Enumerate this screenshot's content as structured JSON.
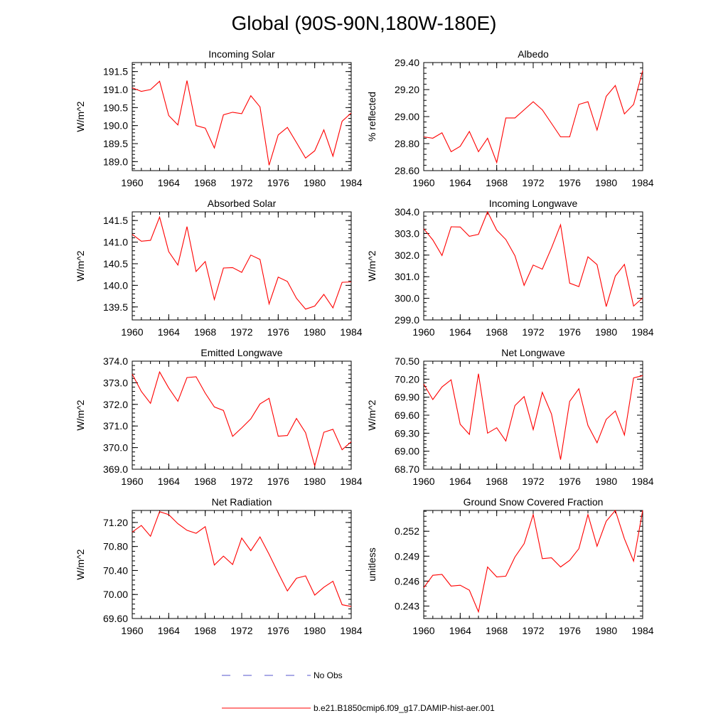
{
  "title": "Global (90S-90N,180W-180E)",
  "colors": {
    "model": "#ff0000",
    "obs": "#5555cc",
    "axis": "#000000"
  },
  "legend": {
    "entries": [
      {
        "label": "No Obs",
        "style": "dashed",
        "color": "#5555cc"
      },
      {
        "label": "b.e21.B1850cmip6.f09_g17.DAMIP-hist-aer.001",
        "style": "solid",
        "color": "#ff0000"
      }
    ]
  },
  "chart_data": [
    {
      "type": "line",
      "title": "Incoming Solar",
      "ylabel": "W/m^2",
      "xlim": [
        1960,
        1984
      ],
      "ylim": [
        188.75,
        191.75
      ],
      "yticks": [
        189.0,
        189.5,
        190.0,
        190.5,
        191.0,
        191.5
      ],
      "yticklabels": [
        "189.0",
        "189.5",
        "190.0",
        "190.5",
        "191.0",
        "191.5"
      ],
      "yminor": 0.1,
      "xticks": [
        1960,
        1964,
        1968,
        1972,
        1976,
        1980,
        1984
      ],
      "xticklabels": [
        "1960",
        "1964",
        "1968",
        "1972",
        "1976",
        "1980",
        "1984"
      ],
      "x": [
        1960,
        1961,
        1962,
        1963,
        1964,
        1965,
        1966,
        1967,
        1968,
        1969,
        1970,
        1971,
        1972,
        1973,
        1974,
        1975,
        1976,
        1977,
        1978,
        1979,
        1980,
        1981,
        1982,
        1983,
        1984
      ],
      "series": [
        {
          "values": [
            191.05,
            190.95,
            191.0,
            191.23,
            190.28,
            190.02,
            191.25,
            190.0,
            189.93,
            189.38,
            190.3,
            190.37,
            190.33,
            190.83,
            190.52,
            188.9,
            189.74,
            189.95,
            189.53,
            189.1,
            189.3,
            189.88,
            189.15,
            190.12,
            190.35
          ]
        }
      ]
    },
    {
      "type": "line",
      "title": "Albedo",
      "ylabel": "% reflected",
      "xlim": [
        1960,
        1984
      ],
      "ylim": [
        28.6,
        29.4
      ],
      "yticks": [
        28.6,
        28.8,
        29.0,
        29.2,
        29.4
      ],
      "yticklabels": [
        "28.60",
        "28.80",
        "29.00",
        "29.20",
        "29.40"
      ],
      "yminor": 0.04,
      "xticks": [
        1960,
        1964,
        1968,
        1972,
        1976,
        1980,
        1984
      ],
      "xticklabels": [
        "1960",
        "1964",
        "1968",
        "1972",
        "1976",
        "1980",
        "1984"
      ],
      "x": [
        1960,
        1961,
        1962,
        1963,
        1964,
        1965,
        1966,
        1967,
        1968,
        1969,
        1970,
        1971,
        1972,
        1973,
        1974,
        1975,
        1976,
        1977,
        1978,
        1979,
        1980,
        1981,
        1982,
        1983,
        1984
      ],
      "series": [
        {
          "values": [
            28.85,
            28.84,
            28.88,
            28.74,
            28.78,
            28.89,
            28.74,
            28.84,
            28.66,
            28.99,
            28.99,
            29.05,
            29.11,
            29.05,
            28.95,
            28.85,
            28.85,
            29.09,
            29.11,
            28.9,
            29.15,
            29.23,
            29.02,
            29.09,
            29.34
          ]
        }
      ]
    },
    {
      "type": "line",
      "title": "Absorbed Solar",
      "ylabel": "W/m^2",
      "xlim": [
        1960,
        1984
      ],
      "ylim": [
        139.2,
        141.7
      ],
      "yticks": [
        139.5,
        140.0,
        140.5,
        141.0,
        141.5
      ],
      "yticklabels": [
        "139.5",
        "140.0",
        "140.5",
        "141.0",
        "141.5"
      ],
      "yminor": 0.1,
      "xticks": [
        1960,
        1964,
        1968,
        1972,
        1976,
        1980,
        1984
      ],
      "xticklabels": [
        "1960",
        "1964",
        "1968",
        "1972",
        "1976",
        "1980",
        "1984"
      ],
      "x": [
        1960,
        1961,
        1962,
        1963,
        1964,
        1965,
        1966,
        1967,
        1968,
        1969,
        1970,
        1971,
        1972,
        1973,
        1974,
        1975,
        1976,
        1977,
        1978,
        1979,
        1980,
        1981,
        1982,
        1983,
        1984
      ],
      "series": [
        {
          "values": [
            141.18,
            141.02,
            141.04,
            141.58,
            140.78,
            140.47,
            141.36,
            140.32,
            140.55,
            139.67,
            140.4,
            140.41,
            140.3,
            140.7,
            140.6,
            139.57,
            140.19,
            140.09,
            139.7,
            139.45,
            139.52,
            139.79,
            139.48,
            140.07,
            140.08
          ]
        }
      ]
    },
    {
      "type": "line",
      "title": "Incoming Longwave",
      "ylabel": "W/m^2",
      "xlim": [
        1960,
        1984
      ],
      "ylim": [
        299.0,
        304.0
      ],
      "yticks": [
        299.0,
        300.0,
        301.0,
        302.0,
        303.0,
        304.0
      ],
      "yticklabels": [
        "299.0",
        "300.0",
        "301.0",
        "302.0",
        "303.0",
        "304.0"
      ],
      "yminor": 0.2,
      "xticks": [
        1960,
        1964,
        1968,
        1972,
        1976,
        1980,
        1984
      ],
      "xticklabels": [
        "1960",
        "1964",
        "1968",
        "1972",
        "1976",
        "1980",
        "1984"
      ],
      "x": [
        1960,
        1961,
        1962,
        1963,
        1964,
        1965,
        1966,
        1967,
        1968,
        1969,
        1970,
        1971,
        1972,
        1973,
        1974,
        1975,
        1976,
        1977,
        1978,
        1979,
        1980,
        1981,
        1982,
        1983,
        1984
      ],
      "series": [
        {
          "values": [
            303.22,
            302.7,
            301.98,
            303.31,
            303.3,
            302.87,
            302.96,
            304.0,
            303.15,
            302.72,
            301.97,
            300.6,
            301.54,
            301.35,
            302.33,
            303.4,
            300.7,
            300.54,
            301.92,
            301.56,
            299.62,
            301.03,
            301.57,
            299.64,
            300.02
          ]
        }
      ]
    },
    {
      "type": "line",
      "title": "Emitted Longwave",
      "ylabel": "W/m^2",
      "xlim": [
        1960,
        1984
      ],
      "ylim": [
        369.0,
        374.0
      ],
      "yticks": [
        369.0,
        370.0,
        371.0,
        372.0,
        373.0,
        374.0
      ],
      "yticklabels": [
        "369.0",
        "370.0",
        "371.0",
        "372.0",
        "373.0",
        "374.0"
      ],
      "yminor": 0.2,
      "xticks": [
        1960,
        1964,
        1968,
        1972,
        1976,
        1980,
        1984
      ],
      "xticklabels": [
        "1960",
        "1964",
        "1968",
        "1972",
        "1976",
        "1980",
        "1984"
      ],
      "x": [
        1960,
        1961,
        1962,
        1963,
        1964,
        1965,
        1966,
        1967,
        1968,
        1969,
        1970,
        1971,
        1972,
        1973,
        1974,
        1975,
        1976,
        1977,
        1978,
        1979,
        1980,
        1981,
        1982,
        1983,
        1984
      ],
      "series": [
        {
          "values": [
            373.4,
            372.6,
            372.05,
            373.5,
            372.76,
            372.14,
            373.24,
            373.28,
            372.52,
            371.88,
            371.72,
            370.52,
            370.91,
            371.33,
            372.02,
            372.28,
            370.53,
            370.56,
            371.35,
            370.69,
            369.15,
            370.71,
            370.85,
            369.9,
            370.27
          ]
        }
      ]
    },
    {
      "type": "line",
      "title": "Net Longwave",
      "ylabel": "W/m^2",
      "xlim": [
        1960,
        1984
      ],
      "ylim": [
        68.7,
        70.5
      ],
      "yticks": [
        68.7,
        69.0,
        69.3,
        69.6,
        69.9,
        70.2,
        70.5
      ],
      "yticklabels": [
        "68.70",
        "69.00",
        "69.30",
        "69.60",
        "69.90",
        "70.20",
        "70.50"
      ],
      "yminor": 0.06,
      "xticks": [
        1960,
        1964,
        1968,
        1972,
        1976,
        1980,
        1984
      ],
      "xticklabels": [
        "1960",
        "1964",
        "1968",
        "1972",
        "1976",
        "1980",
        "1984"
      ],
      "x": [
        1960,
        1961,
        1962,
        1963,
        1964,
        1965,
        1966,
        1967,
        1968,
        1969,
        1970,
        1971,
        1972,
        1973,
        1974,
        1975,
        1976,
        1977,
        1978,
        1979,
        1980,
        1981,
        1982,
        1983,
        1984
      ],
      "series": [
        {
          "values": [
            70.12,
            69.86,
            70.07,
            70.19,
            69.45,
            69.28,
            70.29,
            69.3,
            69.39,
            69.17,
            69.76,
            69.91,
            69.36,
            69.98,
            69.62,
            68.86,
            69.83,
            70.04,
            69.43,
            69.14,
            69.53,
            69.67,
            69.27,
            70.22,
            70.26
          ]
        }
      ]
    },
    {
      "type": "line",
      "title": "Net Radiation",
      "ylabel": "W/m^2",
      "xlim": [
        1960,
        1984
      ],
      "ylim": [
        69.6,
        71.4
      ],
      "yticks": [
        69.6,
        70.0,
        70.4,
        70.8,
        71.2
      ],
      "yticklabels": [
        "69.60",
        "70.00",
        "70.40",
        "70.80",
        "71.20"
      ],
      "yminor": 0.08,
      "xticks": [
        1960,
        1964,
        1968,
        1972,
        1976,
        1980,
        1984
      ],
      "xticklabels": [
        "1960",
        "1964",
        "1968",
        "1972",
        "1976",
        "1980",
        "1984"
      ],
      "x": [
        1960,
        1961,
        1962,
        1963,
        1964,
        1965,
        1966,
        1967,
        1968,
        1969,
        1970,
        1971,
        1972,
        1973,
        1974,
        1975,
        1976,
        1977,
        1978,
        1979,
        1980,
        1981,
        1982,
        1983,
        1984
      ],
      "series": [
        {
          "values": [
            71.04,
            71.15,
            70.97,
            71.38,
            71.33,
            71.18,
            71.07,
            71.02,
            71.13,
            70.49,
            70.64,
            70.5,
            70.94,
            70.73,
            70.96,
            70.67,
            70.36,
            70.06,
            70.27,
            70.31,
            69.99,
            70.12,
            70.22,
            69.83,
            69.8
          ]
        }
      ]
    },
    {
      "type": "line",
      "title": "Ground Snow Covered Fraction",
      "ylabel": "unitless",
      "xlim": [
        1960,
        1984
      ],
      "ylim": [
        0.2415,
        0.2545
      ],
      "yticks": [
        0.243,
        0.246,
        0.249,
        0.252
      ],
      "yticklabels": [
        "0.243",
        "0.246",
        "0.249",
        "0.252"
      ],
      "yminor": 0.0006,
      "xticks": [
        1960,
        1964,
        1968,
        1972,
        1976,
        1980,
        1984
      ],
      "xticklabels": [
        "1960",
        "1964",
        "1968",
        "1972",
        "1976",
        "1980",
        "1984"
      ],
      "x": [
        1960,
        1961,
        1962,
        1963,
        1964,
        1965,
        1966,
        1967,
        1968,
        1969,
        1970,
        1971,
        1972,
        1973,
        1974,
        1975,
        1976,
        1977,
        1978,
        1979,
        1980,
        1981,
        1982,
        1983,
        1984
      ],
      "series": [
        {
          "values": [
            0.2452,
            0.2467,
            0.2468,
            0.2454,
            0.2455,
            0.2449,
            0.2423,
            0.2477,
            0.2465,
            0.2466,
            0.2489,
            0.2505,
            0.254,
            0.2487,
            0.2488,
            0.2477,
            0.2485,
            0.2499,
            0.254,
            0.2502,
            0.2532,
            0.2545,
            0.2511,
            0.2484,
            0.2545
          ]
        }
      ]
    }
  ]
}
